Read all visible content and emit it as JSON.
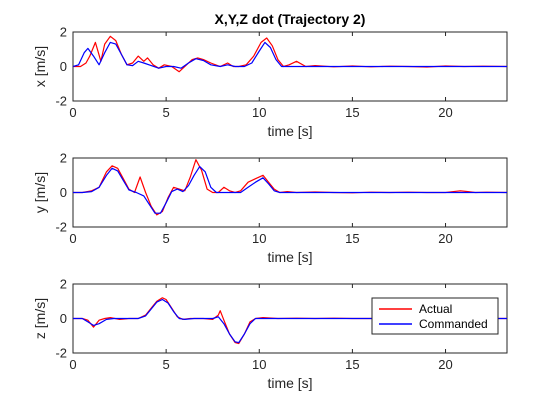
{
  "chart_data": [
    {
      "type": "line",
      "title": "X,Y,Z dot (Trajectory 2)",
      "xlabel": "time [s]",
      "ylabel": "x [m/s]",
      "xlim": [
        0,
        23.3
      ],
      "ylim": [
        -2,
        2
      ],
      "xticks": [
        0,
        5,
        10,
        15,
        20
      ],
      "yticks": [
        -2,
        0,
        2
      ],
      "grid": false,
      "series": [
        {
          "name": "Actual",
          "color": "#ff0000",
          "x": [
            0,
            0.4,
            0.7,
            0.9,
            1.2,
            1.5,
            1.7,
            2.0,
            2.3,
            2.6,
            2.9,
            3.2,
            3.5,
            3.8,
            4.0,
            4.3,
            4.6,
            4.9,
            5.3,
            5.7,
            6.1,
            6.4,
            6.7,
            7.0,
            7.4,
            7.9,
            8.3,
            8.6,
            8.9,
            9.3,
            9.7,
            10.1,
            10.4,
            10.7,
            11.0,
            11.3,
            11.6,
            12.0,
            12.5,
            13.0,
            14.0,
            15.0,
            16.0,
            17.0,
            18.0,
            19.0,
            20.0,
            21.0,
            22.0,
            23.3
          ],
          "values": [
            0,
            0,
            0.2,
            0.6,
            1.4,
            0.3,
            1.3,
            1.75,
            1.5,
            0.7,
            0.1,
            0.2,
            0.6,
            0.3,
            0.5,
            0.1,
            -0.1,
            0.1,
            0,
            -0.3,
            0.1,
            0.4,
            0.5,
            0.4,
            0.2,
            0,
            0.2,
            0,
            0,
            0.1,
            0.6,
            1.4,
            1.65,
            1.2,
            0.4,
            0,
            0.1,
            0.3,
            0,
            0.05,
            -0.02,
            0.03,
            -0.02,
            0.02,
            0,
            -0.03,
            0.03,
            0,
            0.02,
            0
          ]
        },
        {
          "name": "Commanded",
          "color": "#0000ff",
          "x": [
            0,
            0.3,
            0.6,
            0.8,
            1.1,
            1.4,
            1.7,
            2.0,
            2.3,
            2.6,
            2.9,
            3.2,
            3.5,
            3.8,
            4.2,
            4.6,
            5.0,
            5.4,
            5.8,
            6.2,
            6.6,
            7.0,
            7.4,
            7.9,
            8.3,
            8.7,
            9.2,
            9.6,
            10.0,
            10.3,
            10.6,
            10.9,
            11.2,
            11.6,
            12.0,
            13.0,
            14.0,
            15.0,
            16.0,
            17.0,
            18.0,
            19.0,
            20.0,
            21.0,
            22.0,
            23.3
          ],
          "values": [
            0,
            0.1,
            0.8,
            1.05,
            0.6,
            0.1,
            0.8,
            1.4,
            1.3,
            0.7,
            0.1,
            0.05,
            0.3,
            0.2,
            0.05,
            -0.1,
            0,
            0,
            -0.1,
            0.2,
            0.45,
            0.35,
            0.1,
            0,
            0.1,
            0,
            0,
            0.2,
            0.9,
            1.4,
            1.1,
            0.4,
            0,
            0,
            0,
            0,
            0,
            0,
            0,
            0,
            0,
            0,
            0,
            0,
            0,
            0
          ]
        }
      ]
    },
    {
      "type": "line",
      "title": "",
      "xlabel": "time [s]",
      "ylabel": "y [m/s]",
      "xlim": [
        0,
        23.3
      ],
      "ylim": [
        -2,
        2
      ],
      "xticks": [
        0,
        5,
        10,
        15,
        20
      ],
      "yticks": [
        -2,
        0,
        2
      ],
      "grid": false,
      "series": [
        {
          "name": "Actual",
          "color": "#ff0000",
          "x": [
            0,
            0.5,
            1.0,
            1.4,
            1.8,
            2.1,
            2.4,
            2.7,
            3.0,
            3.3,
            3.6,
            3.9,
            4.2,
            4.5,
            4.8,
            5.1,
            5.4,
            5.7,
            6.0,
            6.3,
            6.6,
            6.9,
            7.2,
            7.5,
            7.8,
            8.1,
            8.4,
            8.7,
            9.0,
            9.4,
            9.8,
            10.2,
            10.5,
            10.8,
            11.1,
            11.5,
            12.0,
            13.0,
            14.0,
            15.0,
            16.0,
            17.0,
            18.0,
            19.0,
            20.0,
            20.8,
            21.2,
            21.6,
            22.2,
            23.3
          ],
          "values": [
            0,
            0,
            0.1,
            0.3,
            1.2,
            1.55,
            1.4,
            0.8,
            0.2,
            0,
            0.9,
            0,
            -0.8,
            -1.3,
            -1.1,
            -0.3,
            0.3,
            0.2,
            0.1,
            0.9,
            1.9,
            1.3,
            0.2,
            0,
            0,
            0.3,
            0.1,
            0,
            0.1,
            0.6,
            0.8,
            1.0,
            0.6,
            0.2,
            0,
            0.05,
            0,
            0.03,
            0,
            -0.02,
            0.02,
            0,
            0.02,
            0,
            0,
            0.1,
            0.05,
            0,
            0.02,
            0
          ]
        },
        {
          "name": "Commanded",
          "color": "#0000ff",
          "x": [
            0,
            0.5,
            1.0,
            1.4,
            1.8,
            2.1,
            2.4,
            2.7,
            3.0,
            3.4,
            3.8,
            4.1,
            4.4,
            4.7,
            5.0,
            5.3,
            5.6,
            5.9,
            6.2,
            6.5,
            6.8,
            7.1,
            7.4,
            7.7,
            8.0,
            8.5,
            9.0,
            9.4,
            9.8,
            10.2,
            10.5,
            10.8,
            11.1,
            11.5,
            12.0,
            13.0,
            14.0,
            15.0,
            16.0,
            17.0,
            18.0,
            19.0,
            20.0,
            21.0,
            22.0,
            23.3
          ],
          "values": [
            0,
            0,
            0.05,
            0.3,
            1.0,
            1.4,
            1.25,
            0.7,
            0.15,
            0,
            -0.2,
            -0.7,
            -1.2,
            -1.2,
            -0.6,
            0.05,
            0.2,
            0.05,
            0.4,
            1.0,
            1.5,
            1.2,
            0.3,
            0,
            0,
            0,
            0,
            0.3,
            0.6,
            0.85,
            0.5,
            0.1,
            0,
            0,
            0,
            0,
            0,
            0,
            0,
            0,
            0,
            0,
            0,
            0,
            0,
            0
          ]
        }
      ]
    },
    {
      "type": "line",
      "title": "",
      "xlabel": "time [s]",
      "ylabel": "z [m/s]",
      "xlim": [
        0,
        23.3
      ],
      "ylim": [
        -2,
        2
      ],
      "xticks": [
        0,
        5,
        10,
        15,
        20
      ],
      "yticks": [
        -2,
        0,
        2
      ],
      "grid": false,
      "legend": "right",
      "series": [
        {
          "name": "Actual",
          "color": "#ff0000",
          "x": [
            0,
            0.5,
            0.8,
            1.1,
            1.4,
            1.7,
            2.0,
            2.5,
            3.0,
            3.5,
            3.9,
            4.2,
            4.5,
            4.8,
            5.0,
            5.3,
            5.6,
            5.9,
            6.3,
            7.0,
            7.5,
            7.8,
            7.9,
            8.1,
            8.4,
            8.7,
            8.9,
            9.2,
            9.5,
            9.8,
            10.2,
            11.0,
            12.0,
            13.0,
            14.0,
            15.0,
            16.0,
            17.0,
            18.0,
            19.0,
            20.0,
            21.0,
            22.0,
            23.3
          ],
          "values": [
            0,
            0,
            -0.1,
            -0.5,
            -0.1,
            0,
            0.05,
            -0.05,
            0,
            0,
            0.2,
            0.6,
            1.0,
            1.2,
            1.1,
            0.6,
            0.1,
            -0.05,
            0,
            0,
            -0.05,
            0.2,
            0.45,
            -0.1,
            -0.9,
            -1.4,
            -1.45,
            -0.9,
            -0.2,
            0,
            0.05,
            0,
            0.02,
            0,
            0.02,
            0,
            0,
            0.02,
            0,
            0,
            0.02,
            0,
            0,
            0
          ]
        },
        {
          "name": "Commanded",
          "color": "#0000ff",
          "x": [
            0,
            0.5,
            0.8,
            1.1,
            1.4,
            1.8,
            2.2,
            3.0,
            3.5,
            3.9,
            4.2,
            4.5,
            4.8,
            5.1,
            5.4,
            5.7,
            6.0,
            6.5,
            7.0,
            7.5,
            7.8,
            8.1,
            8.4,
            8.7,
            8.9,
            9.2,
            9.5,
            9.8,
            10.2,
            11.0,
            12.0,
            13.0,
            14.0,
            15.0,
            16.0,
            17.0,
            18.0,
            19.0,
            20.0,
            21.0,
            22.0,
            23.3
          ],
          "values": [
            0,
            0,
            -0.2,
            -0.4,
            -0.3,
            -0.05,
            0,
            0,
            0,
            0.15,
            0.55,
            0.95,
            1.1,
            0.9,
            0.4,
            0,
            -0.05,
            0,
            0,
            0,
            0.1,
            -0.3,
            -0.9,
            -1.35,
            -1.4,
            -0.9,
            -0.3,
            0,
            0,
            0,
            0,
            0,
            0,
            0,
            0,
            0,
            0,
            0,
            0,
            0,
            0,
            0
          ]
        }
      ]
    }
  ]
}
